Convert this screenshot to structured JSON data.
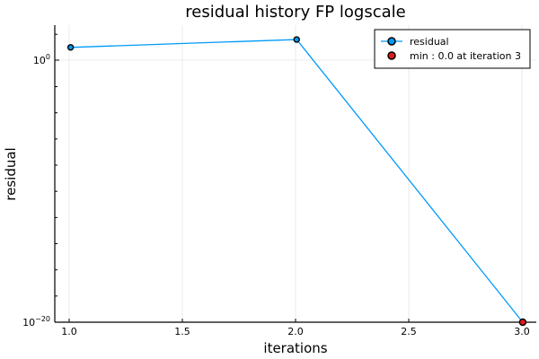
{
  "chart_data": {
    "type": "line",
    "title": "residual history FP logscale",
    "xlabel": "iterations",
    "ylabel": "residual",
    "yscale": "log10",
    "xlim": [
      0.93,
      3.06
    ],
    "ylim_log10": [
      -20,
      2.7
    ],
    "grid": true,
    "legend_position": "top-right",
    "x_ticks": [
      {
        "value": 1.0,
        "label": "1.0"
      },
      {
        "value": 1.5,
        "label": "1.5"
      },
      {
        "value": 2.0,
        "label": "2.0"
      },
      {
        "value": 2.5,
        "label": "2.5"
      },
      {
        "value": 3.0,
        "label": "3.0"
      }
    ],
    "y_ticks": [
      {
        "log10": 0,
        "base": "10",
        "exp": "0"
      },
      {
        "log10": -20,
        "base": "10",
        "exp": "−20"
      }
    ],
    "series": [
      {
        "name": "residual",
        "kind": "line+markers",
        "color": "#009AFA",
        "x": [
          1.0,
          2.0,
          3.0
        ],
        "y_log10": [
          1.0,
          1.6,
          -20
        ]
      },
      {
        "name": "min : 0.0 at iteration 3",
        "kind": "markers",
        "color": "#E31A1C",
        "x": [
          3.0
        ],
        "y_log10": [
          -20
        ]
      }
    ]
  }
}
